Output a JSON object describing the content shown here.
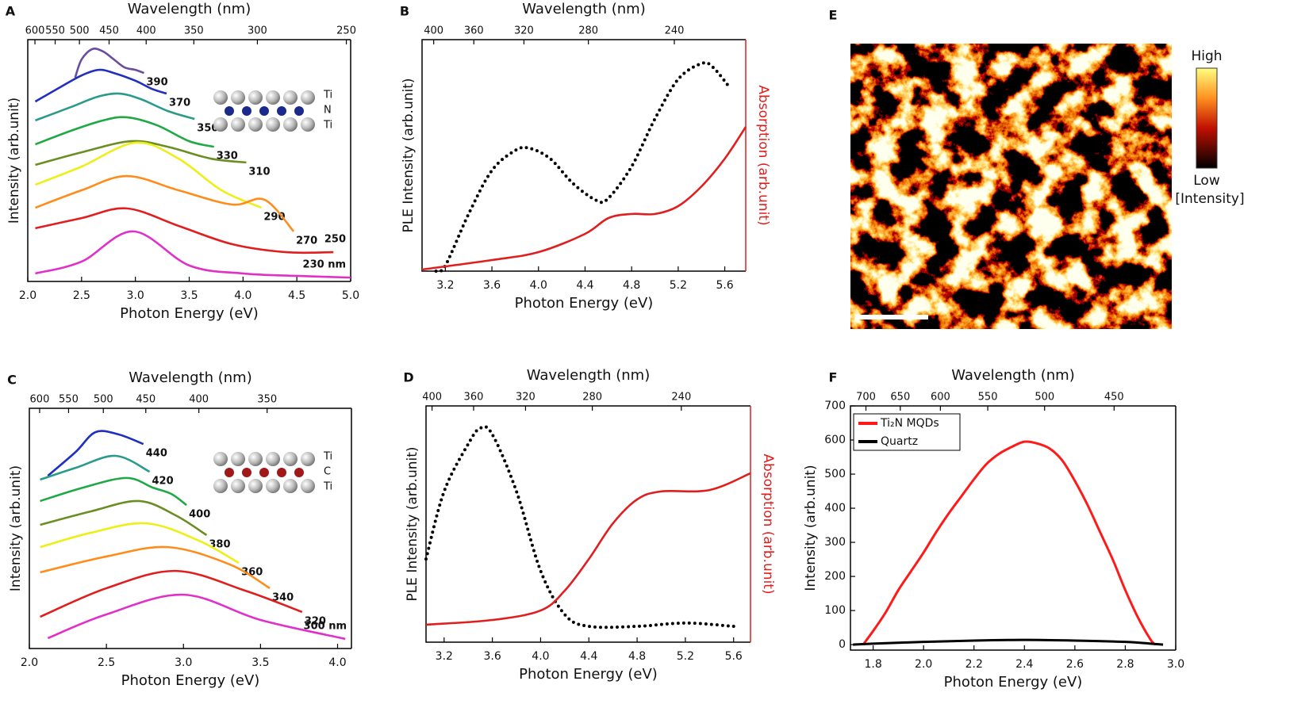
{
  "chart_data": [
    {
      "type": "line",
      "label": "A",
      "xlabel": "Photon Energy (eV)",
      "ylabel": "Intensity (arb.unit)",
      "x2label": "Wavelength (nm)",
      "xlim": [
        2.0,
        5.0
      ],
      "xticks": [
        {
          "value": 2,
          "label": "2.0"
        },
        2.5,
        {
          "value": 3,
          "label": "3.0"
        },
        3.5,
        {
          "value": 4,
          "label": "4.0"
        },
        4.5,
        {
          "value": 5,
          "label": "5.0"
        }
      ],
      "x2ticks": [
        600,
        550,
        500,
        450,
        400,
        350,
        300,
        250
      ],
      "ylim": [
        0,
        10
      ],
      "series_labels": "end",
      "inset_labels": [
        "Ti",
        "N",
        "Ti"
      ],
      "inset_atom_color": "#1a2a8c",
      "series": [
        {
          "name": "390",
          "color": "#6a4ca0",
          "x": [
            2.44,
            2.5,
            2.6,
            2.7,
            2.8,
            2.9,
            3.0,
            3.08
          ],
          "values": [
            8.43,
            9.18,
            9.61,
            9.51,
            9.18,
            8.85,
            8.75,
            8.62
          ]
        },
        {
          "name": "370",
          "color": "#1f2fbf",
          "x": [
            2.07,
            2.3,
            2.5,
            2.66,
            2.8,
            3.0,
            3.15,
            3.29
          ],
          "values": [
            7.44,
            8.03,
            8.52,
            8.75,
            8.62,
            8.3,
            7.97,
            7.77
          ]
        },
        {
          "name": "350",
          "color": "#2a9a8a",
          "x": [
            2.07,
            2.4,
            2.65,
            2.85,
            3.05,
            3.3,
            3.55
          ],
          "values": [
            6.66,
            7.21,
            7.64,
            7.77,
            7.54,
            7.05,
            6.72
          ]
        },
        {
          "name": "330",
          "color": "#1fa844",
          "x": [
            2.07,
            2.4,
            2.7,
            2.92,
            3.2,
            3.5,
            3.73
          ],
          "values": [
            5.67,
            6.23,
            6.66,
            6.79,
            6.46,
            5.8,
            5.57
          ]
        },
        {
          "name": "310",
          "color": "#6b8e23",
          "x": [
            2.07,
            2.5,
            2.96,
            3.3,
            3.7,
            4.03
          ],
          "values": [
            4.82,
            5.34,
            5.8,
            5.57,
            5.08,
            4.92
          ]
        },
        {
          "name": "290",
          "color": "#eeee1a",
          "x": [
            2.07,
            2.5,
            3.0,
            3.4,
            3.8,
            4.17
          ],
          "values": [
            4.0,
            4.75,
            5.74,
            5.08,
            3.77,
            3.05
          ]
        },
        {
          "name": "270",
          "color": "#ff8c1a",
          "x": [
            2.07,
            2.5,
            2.92,
            3.4,
            3.9,
            4.2,
            4.47
          ],
          "values": [
            3.05,
            3.77,
            4.36,
            3.77,
            3.18,
            3.38,
            2.07
          ]
        },
        {
          "name": "250",
          "color": "#e01e1e",
          "x": [
            2.07,
            2.5,
            2.92,
            3.4,
            3.9,
            4.4,
            4.84
          ],
          "values": [
            2.2,
            2.62,
            3.02,
            2.3,
            1.54,
            1.21,
            1.21
          ]
        },
        {
          "name": "230 nm",
          "color": "#e030c8",
          "x": [
            2.07,
            2.5,
            2.98,
            3.5,
            4.0,
            4.5,
            5.0
          ],
          "values": [
            0.33,
            0.82,
            2.07,
            0.66,
            0.33,
            0.23,
            0.16
          ]
        }
      ]
    },
    {
      "type": "line",
      "label": "B",
      "xlabel": "Photon Energy (eV)",
      "ylabel": "PLE Intensity (arb.unit)",
      "x2label": "Wavelength (nm)",
      "y2label": "Absorption (arb.unit)",
      "y2color": "#e01e1e",
      "xlim": [
        3.0,
        5.78
      ],
      "xticks": [
        3.2,
        3.6,
        {
          "value": 4,
          "label": "4.0"
        },
        4.4,
        4.8,
        5.2,
        5.6
      ],
      "x2ticks": [
        400,
        360,
        320,
        280,
        240
      ],
      "ylim": [
        0,
        10
      ],
      "y2lim": [
        0,
        10
      ],
      "series": [
        {
          "color": "#000000",
          "style": "dotted",
          "x": [
            3.12,
            3.2,
            3.4,
            3.6,
            3.8,
            3.92,
            4.1,
            4.3,
            4.5,
            4.6,
            4.8,
            5.0,
            5.2,
            5.4,
            5.5,
            5.65
          ],
          "values": [
            0,
            0.24,
            2.47,
            4.35,
            5.21,
            5.31,
            4.86,
            3.77,
            3.05,
            3.15,
            4.52,
            6.58,
            8.29,
            8.97,
            8.8,
            7.88
          ]
        },
        {
          "color": "#e01e1e",
          "axis": "y2",
          "x": [
            3.0,
            3.6,
            4.0,
            4.4,
            4.6,
            4.8,
            5.0,
            5.2,
            5.4,
            5.6,
            5.78
          ],
          "values": [
            0.07,
            0.48,
            0.82,
            1.61,
            2.29,
            2.47,
            2.47,
            2.81,
            3.66,
            4.86,
            6.23
          ]
        }
      ]
    },
    {
      "type": "line",
      "label": "C",
      "xlabel": "Photon Energy (eV)",
      "ylabel": "Intensity (arb.unit)",
      "x2label": "Wavelength (nm)",
      "xlim": [
        2.0,
        4.09
      ],
      "xticks": [
        {
          "value": 2,
          "label": "2.0"
        },
        2.5,
        {
          "value": 3,
          "label": "3.0"
        },
        3.5,
        {
          "value": 4,
          "label": "4.0"
        }
      ],
      "x2ticks": [
        600,
        550,
        500,
        450,
        400,
        350
      ],
      "ylim": [
        0,
        10
      ],
      "series_labels": "end",
      "inset_labels": [
        "Ti",
        "C",
        "Ti"
      ],
      "inset_atom_color": "#a01818",
      "series": [
        {
          "name": "440",
          "color": "#1f2fbf",
          "x": [
            2.12,
            2.3,
            2.43,
            2.58,
            2.74
          ],
          "values": [
            7.19,
            8.18,
            9.01,
            8.91,
            8.51
          ]
        },
        {
          "name": "420",
          "color": "#2a9a8a",
          "x": [
            2.07,
            2.3,
            2.56,
            2.78
          ],
          "values": [
            7.03,
            7.52,
            8.02,
            7.36
          ]
        },
        {
          "name": "400",
          "color": "#1fa844",
          "x": [
            2.07,
            2.35,
            2.63,
            2.8,
            2.92,
            3.02
          ],
          "values": [
            6.14,
            6.7,
            7.1,
            6.7,
            6.44,
            5.97
          ]
        },
        {
          "name": "380",
          "color": "#6b8e23",
          "x": [
            2.07,
            2.4,
            2.71,
            2.95,
            3.15
          ],
          "values": [
            5.15,
            5.71,
            6.14,
            5.54,
            4.72
          ]
        },
        {
          "name": "360",
          "color": "#eeee1a",
          "x": [
            2.07,
            2.4,
            2.76,
            3.1,
            3.36
          ],
          "values": [
            4.22,
            4.82,
            5.21,
            4.49,
            3.56
          ]
        },
        {
          "name": "340",
          "color": "#ff8c1a",
          "x": [
            2.07,
            2.5,
            2.9,
            3.3,
            3.56
          ],
          "values": [
            3.17,
            3.83,
            4.22,
            3.5,
            2.51
          ]
        },
        {
          "name": "320",
          "color": "#e01e1e",
          "x": [
            2.07,
            2.5,
            2.95,
            3.4,
            3.77
          ],
          "values": [
            1.32,
            2.51,
            3.23,
            2.41,
            1.52
          ]
        },
        {
          "name": "300 nm",
          "color": "#e030c8",
          "x": [
            2.12,
            2.5,
            3.0,
            3.5,
            4.05
          ],
          "values": [
            0.43,
            1.42,
            2.24,
            1.19,
            0.4
          ]
        }
      ]
    },
    {
      "type": "line",
      "label": "D",
      "xlabel": "Photon Energy (eV)",
      "ylabel": "PLE Intensity (arb.unit)",
      "x2label": "Wavelength (nm)",
      "y2label": "Absorption (arb.unit)",
      "y2color": "#e01e1e",
      "xlim": [
        3.05,
        5.74
      ],
      "xticks": [
        3.2,
        3.6,
        {
          "value": 4,
          "label": "4.0"
        },
        4.4,
        4.8,
        5.2,
        5.6
      ],
      "x2ticks": [
        400,
        360,
        320,
        280,
        240
      ],
      "ylim": [
        0,
        10
      ],
      "y2lim": [
        0,
        10
      ],
      "series": [
        {
          "color": "#000000",
          "style": "dotted",
          "x": [
            3.05,
            3.2,
            3.4,
            3.5,
            3.6,
            3.8,
            4.0,
            4.2,
            4.4,
            4.8,
            5.2,
            5.6
          ],
          "values": [
            3.52,
            6.38,
            8.39,
            9.06,
            8.79,
            6.38,
            3.02,
            1.17,
            0.67,
            0.67,
            0.81,
            0.67
          ]
        },
        {
          "color": "#e01e1e",
          "axis": "y2",
          "x": [
            3.05,
            3.6,
            4.0,
            4.2,
            4.4,
            4.6,
            4.8,
            5.0,
            5.4,
            5.74
          ],
          "values": [
            0.74,
            0.94,
            1.34,
            2.18,
            3.52,
            5.03,
            6.04,
            6.38,
            6.44,
            7.15
          ]
        }
      ]
    },
    {
      "type": "image",
      "label": "E",
      "colorbar": {
        "high": "High",
        "low": "Low",
        "unit": "[Intensity]"
      }
    },
    {
      "type": "line",
      "label": "F",
      "xlabel": "Photon Energy (eV)",
      "ylabel": "Intensity (arb.unit)",
      "x2label": "Wavelength (nm)",
      "xlim": [
        1.71,
        3.0
      ],
      "xticks": [
        1.8,
        {
          "value": 2,
          "label": "2.0"
        },
        2.2,
        2.4,
        2.6,
        2.8,
        {
          "value": 3,
          "label": "3.0"
        }
      ],
      "x2ticks": [
        700,
        650,
        600,
        550,
        500,
        450
      ],
      "ylim": [
        -16,
        700
      ],
      "yticks": [
        0,
        100,
        200,
        300,
        400,
        500,
        600,
        700
      ],
      "legend": "upper left",
      "line_width": 3,
      "series": [
        {
          "name": "Ti₂N MQDs",
          "color": "#ff1a1a",
          "x": [
            1.76,
            1.8,
            1.85,
            1.9,
            1.95,
            2.0,
            2.05,
            2.1,
            2.15,
            2.2,
            2.25,
            2.3,
            2.35,
            2.4,
            2.45,
            2.5,
            2.55,
            2.6,
            2.65,
            2.7,
            2.75,
            2.8,
            2.85,
            2.9,
            2.92
          ],
          "values": [
            0,
            40,
            95,
            160,
            215,
            270,
            330,
            385,
            435,
            485,
            530,
            560,
            580,
            595,
            590,
            575,
            540,
            480,
            410,
            330,
            250,
            160,
            80,
            15,
            0
          ]
        },
        {
          "name": "Quartz",
          "color": "#000000",
          "x": [
            1.72,
            1.8,
            2.0,
            2.2,
            2.4,
            2.6,
            2.8,
            2.9,
            2.95
          ],
          "values": [
            0,
            3,
            8,
            12,
            14,
            12,
            8,
            3,
            0
          ]
        }
      ]
    }
  ]
}
